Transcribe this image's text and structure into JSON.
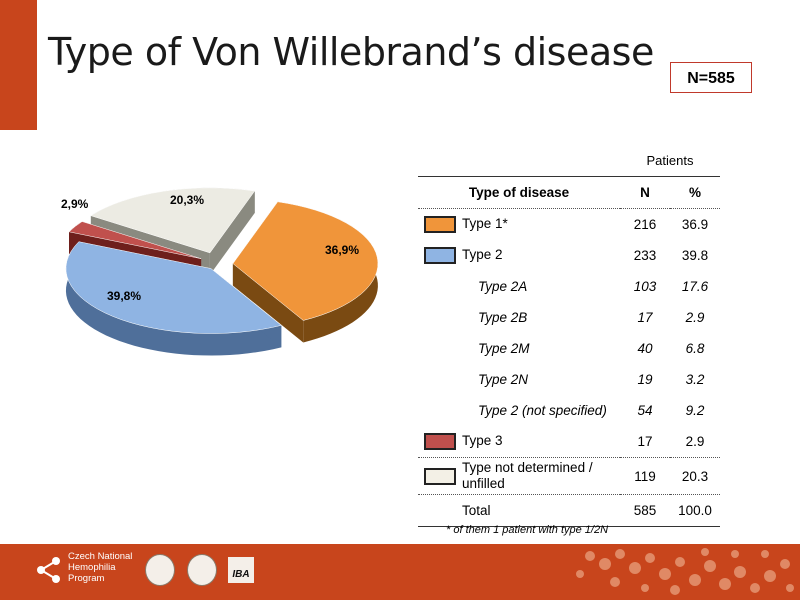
{
  "slide": {
    "title": "Type of Von Willebrand’s disease",
    "n_badge": "N=585",
    "footnote": "* of them 1 patient with type 1/2N"
  },
  "table": {
    "group_header": "Patients",
    "headers": {
      "name": "Type of disease",
      "n": "N",
      "pct": "%"
    },
    "rows": [
      {
        "name": "Type 1*",
        "n": "216",
        "pct": "36.9",
        "swatch": "#f0953a",
        "kind": "main"
      },
      {
        "name": "Type 2",
        "n": "233",
        "pct": "39.8",
        "swatch": "#8fb4e3",
        "kind": "main"
      },
      {
        "name": "Type 2A",
        "n": "103",
        "pct": "17.6",
        "kind": "sub"
      },
      {
        "name": "Type 2B",
        "n": "17",
        "pct": "2.9",
        "kind": "sub"
      },
      {
        "name": "Type 2M",
        "n": "40",
        "pct": "6.8",
        "kind": "sub"
      },
      {
        "name": "Type 2N",
        "n": "19",
        "pct": "3.2",
        "kind": "sub"
      },
      {
        "name": "Type 2 (not specified)",
        "n": "54",
        "pct": "9.2",
        "kind": "sub"
      },
      {
        "name": "Type 3",
        "n": "17",
        "pct": "2.9",
        "swatch": "#c0504d",
        "kind": "main"
      },
      {
        "name": "Type not determined / unfilled",
        "n": "119",
        "pct": "20.3",
        "swatch": "#f3f0e6",
        "kind": "main"
      }
    ],
    "total": {
      "name": "Total",
      "n": "585",
      "pct": "100.0"
    }
  },
  "chart_data": {
    "type": "pie",
    "slices": [
      {
        "label": "36,9%",
        "value": 36.9,
        "color": "#f0953a",
        "dark": "#7a4a12"
      },
      {
        "label": "39,8%",
        "value": 39.8,
        "color": "#8fb4e3",
        "dark": "#4f6f9a"
      },
      {
        "label": "2,9%",
        "value": 2.9,
        "color": "#c0504d",
        "dark": "#6e1f1c"
      },
      {
        "label": "20,3%",
        "value": 20.3,
        "color": "#ecebe3",
        "dark": "#8a8a80"
      }
    ]
  },
  "footer": {
    "org_line1": "Czech National",
    "org_line2": "Hemophilia",
    "org_line3": "Program",
    "iba_label": "IBA"
  }
}
